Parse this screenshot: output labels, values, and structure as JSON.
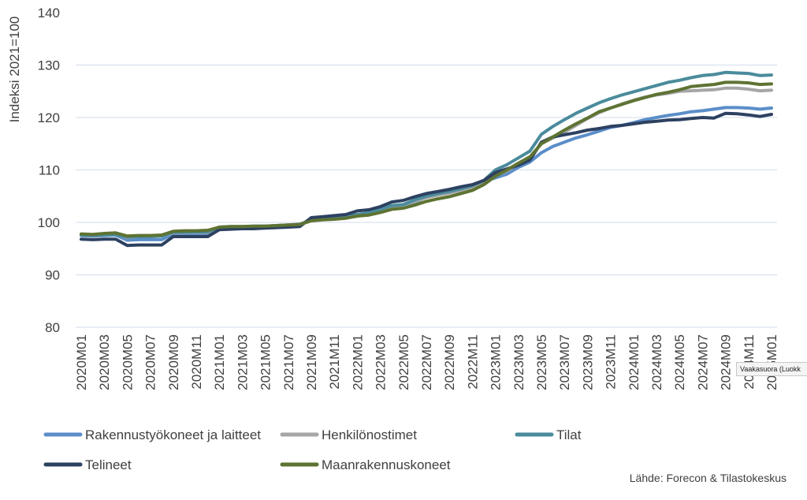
{
  "chart_data": {
    "type": "line",
    "ylabel": "Indeksi 2021=100",
    "ylim": [
      80,
      140
    ],
    "yticks": [
      80,
      90,
      100,
      110,
      120,
      130,
      140
    ],
    "grid": "horizontal",
    "legend_position": "bottom",
    "source": "Lähde: Forecon & Tilastokeskus",
    "x": [
      "2020M01",
      "2020M02",
      "2020M03",
      "2020M04",
      "2020M05",
      "2020M06",
      "2020M07",
      "2020M08",
      "2020M09",
      "2020M10",
      "2020M11",
      "2020M12",
      "2021M01",
      "2021M02",
      "2021M03",
      "2021M04",
      "2021M05",
      "2021M06",
      "2021M07",
      "2021M08",
      "2021M09",
      "2021M10",
      "2021M11",
      "2021M12",
      "2022M01",
      "2022M02",
      "2022M03",
      "2022M04",
      "2022M05",
      "2022M06",
      "2022M07",
      "2022M08",
      "2022M09",
      "2022M10",
      "2022M11",
      "2022M12",
      "2023M01",
      "2023M02",
      "2023M03",
      "2023M04",
      "2023M05",
      "2023M06",
      "2023M07",
      "2023M08",
      "2023M09",
      "2023M10",
      "2023M11",
      "2023M12",
      "2024M01",
      "2024M02",
      "2024M03",
      "2024M04",
      "2024M05",
      "2024M06",
      "2024M07",
      "2024M08",
      "2024M09",
      "2024M10",
      "2024M11",
      "2024M12",
      "2025M01"
    ],
    "xtick_labels": [
      "2020M01",
      "2020M03",
      "2020M05",
      "2020M07",
      "2020M09",
      "2020M11",
      "2021M01",
      "2021M03",
      "2021M05",
      "2021M07",
      "2021M09",
      "2021M11",
      "2022M01",
      "2022M03",
      "2022M05",
      "2022M07",
      "2022M09",
      "2022M11",
      "2023M01",
      "2023M03",
      "2023M05",
      "2023M07",
      "2023M09",
      "2023M11",
      "2024M01",
      "2024M03",
      "2024M05",
      "2024M07",
      "2024M09",
      "2024M11",
      "2025M01"
    ],
    "series": [
      {
        "name": "Rakennustyökoneet ja laitteet",
        "color": "#5b8ec9",
        "values": [
          97.5,
          97.4,
          97.5,
          97.6,
          96.6,
          96.7,
          96.7,
          96.7,
          97.8,
          97.8,
          97.8,
          97.8,
          98.9,
          99.0,
          99.1,
          99.2,
          99.2,
          99.3,
          99.4,
          99.6,
          100.4,
          100.6,
          100.8,
          101.0,
          101.4,
          101.6,
          102.2,
          102.9,
          103.0,
          103.8,
          104.8,
          105.3,
          105.7,
          106.3,
          106.8,
          107.8,
          108.5,
          109.2,
          110.5,
          111.5,
          113.3,
          114.5,
          115.3,
          116.1,
          116.7,
          117.4,
          118.1,
          118.5,
          119.0,
          119.6,
          120.0,
          120.4,
          120.7,
          121.1,
          121.3,
          121.6,
          121.9,
          121.9,
          121.8,
          121.6,
          121.8
        ]
      },
      {
        "name": "Henkilönostimet",
        "color": "#a6a6a6",
        "values": [
          97.7,
          97.5,
          97.7,
          97.8,
          97.1,
          97.3,
          97.3,
          97.4,
          98.0,
          98.0,
          98.1,
          98.1,
          99.0,
          99.1,
          99.1,
          99.2,
          99.3,
          99.4,
          99.5,
          99.7,
          100.4,
          100.6,
          100.8,
          101.1,
          101.5,
          101.8,
          102.4,
          103.0,
          103.3,
          104.0,
          104.7,
          105.2,
          105.6,
          106.1,
          106.7,
          107.6,
          108.9,
          109.8,
          111.2,
          112.4,
          115.0,
          116.1,
          117.2,
          118.5,
          119.8,
          120.9,
          121.8,
          122.6,
          123.3,
          123.9,
          124.3,
          124.6,
          125.0,
          125.1,
          125.2,
          125.3,
          125.6,
          125.6,
          125.4,
          125.1,
          125.2
        ]
      },
      {
        "name": "Tilat",
        "color": "#4a8b9c",
        "values": [
          97.6,
          97.5,
          97.6,
          97.7,
          97.2,
          97.3,
          97.3,
          97.4,
          98.1,
          98.1,
          98.2,
          98.2,
          99.1,
          99.2,
          99.2,
          99.3,
          99.3,
          99.4,
          99.5,
          99.6,
          100.5,
          100.7,
          100.9,
          101.2,
          101.5,
          101.8,
          102.5,
          103.2,
          103.4,
          104.3,
          105.0,
          105.5,
          105.9,
          106.4,
          107.0,
          108.0,
          110.0,
          111.0,
          112.3,
          113.6,
          116.8,
          118.3,
          119.6,
          120.8,
          121.8,
          122.8,
          123.6,
          124.3,
          124.9,
          125.5,
          126.1,
          126.7,
          127.1,
          127.6,
          128.0,
          128.2,
          128.6,
          128.5,
          128.4,
          128.0,
          128.1
        ]
      },
      {
        "name": "Telineet",
        "color": "#2d4161",
        "values": [
          96.8,
          96.7,
          96.8,
          96.8,
          95.6,
          95.7,
          95.7,
          95.7,
          97.3,
          97.3,
          97.3,
          97.3,
          98.6,
          98.7,
          98.8,
          98.8,
          98.9,
          99.0,
          99.1,
          99.2,
          100.9,
          101.1,
          101.3,
          101.5,
          102.2,
          102.4,
          103.0,
          103.9,
          104.2,
          104.9,
          105.5,
          105.9,
          106.3,
          106.8,
          107.2,
          108.0,
          109.5,
          110.2,
          110.9,
          111.9,
          115.3,
          116.3,
          116.7,
          117.1,
          117.6,
          117.9,
          118.3,
          118.5,
          118.8,
          119.1,
          119.3,
          119.5,
          119.6,
          119.8,
          120.0,
          119.9,
          120.8,
          120.7,
          120.5,
          120.2,
          120.6
        ]
      },
      {
        "name": "Maanrakennuskoneet",
        "color": "#5e7332",
        "values": [
          97.8,
          97.7,
          97.9,
          98.0,
          97.4,
          97.5,
          97.5,
          97.6,
          98.3,
          98.4,
          98.4,
          98.5,
          99.1,
          99.2,
          99.2,
          99.3,
          99.3,
          99.4,
          99.5,
          99.6,
          100.3,
          100.5,
          100.6,
          100.8,
          101.2,
          101.4,
          101.9,
          102.5,
          102.7,
          103.3,
          104.0,
          104.5,
          104.9,
          105.5,
          106.1,
          107.2,
          108.8,
          110.0,
          111.3,
          112.5,
          115.0,
          116.3,
          117.6,
          118.8,
          119.9,
          121.1,
          121.8,
          122.5,
          123.2,
          123.8,
          124.4,
          124.8,
          125.3,
          125.9,
          126.1,
          126.3,
          126.7,
          126.7,
          126.6,
          126.3,
          126.4
        ]
      }
    ]
  },
  "overlay": {
    "tooltip_text": "Vaakasuora (Luokk"
  }
}
